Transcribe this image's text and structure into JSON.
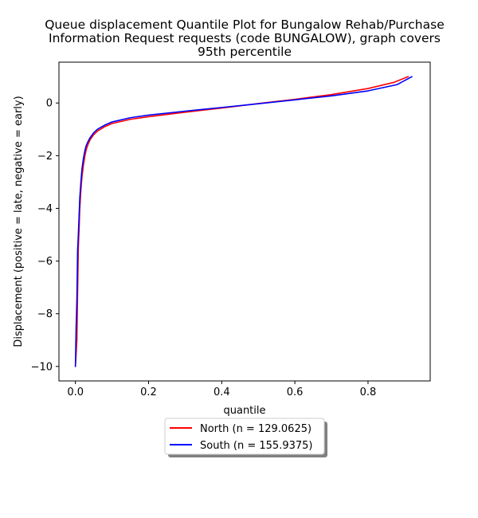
{
  "chart_data": {
    "type": "line",
    "title_lines": [
      "Queue displacement Quantile Plot for Bungalow Rehab/Purchase",
      "Information Request  requests (code BUNGALOW), graph covers",
      "95th percentile"
    ],
    "xlabel": "quantile",
    "ylabel": "Displacement (positive = late, negative = early)",
    "xlim": [
      -0.045,
      0.97
    ],
    "ylim": [
      -10.55,
      1.55
    ],
    "xticks": [
      0.0,
      0.2,
      0.4,
      0.6,
      0.8
    ],
    "xtick_labels": [
      "0.0",
      "0.2",
      "0.4",
      "0.6",
      "0.8"
    ],
    "yticks": [
      0,
      -2,
      -4,
      -6,
      -8,
      -10
    ],
    "ytick_labels": [
      "0",
      "−2",
      "−4",
      "−6",
      "−8",
      "−10"
    ],
    "grid": false,
    "legend_position": "below",
    "series": [
      {
        "name": "North (n = 129.0625)",
        "color": "#ff0000",
        "x": [
          0.0,
          0.004,
          0.006,
          0.008,
          0.01,
          0.012,
          0.015,
          0.018,
          0.022,
          0.026,
          0.03,
          0.035,
          0.04,
          0.05,
          0.06,
          0.08,
          0.1,
          0.15,
          0.2,
          0.3,
          0.4,
          0.5,
          0.6,
          0.7,
          0.8,
          0.87,
          0.91
        ],
        "values": [
          -10.0,
          -9.0,
          -7.2,
          -5.5,
          -4.8,
          -4.0,
          -3.3,
          -2.8,
          -2.35,
          -2.0,
          -1.75,
          -1.55,
          -1.4,
          -1.2,
          -1.07,
          -0.9,
          -0.78,
          -0.62,
          -0.52,
          -0.35,
          -0.19,
          -0.02,
          0.14,
          0.32,
          0.55,
          0.78,
          1.0
        ]
      },
      {
        "name": "South (n = 155.9375)",
        "color": "#0000ff",
        "x": [
          0.0,
          0.002,
          0.004,
          0.006,
          0.008,
          0.01,
          0.012,
          0.015,
          0.018,
          0.022,
          0.026,
          0.03,
          0.035,
          0.04,
          0.05,
          0.06,
          0.08,
          0.1,
          0.15,
          0.2,
          0.3,
          0.4,
          0.5,
          0.6,
          0.7,
          0.8,
          0.88,
          0.92
        ],
        "values": [
          -10.0,
          -8.5,
          -7.5,
          -5.6,
          -5.0,
          -4.3,
          -3.6,
          -3.0,
          -2.5,
          -2.1,
          -1.8,
          -1.6,
          -1.45,
          -1.32,
          -1.13,
          -1.0,
          -0.84,
          -0.72,
          -0.56,
          -0.46,
          -0.31,
          -0.17,
          -0.03,
          0.12,
          0.27,
          0.46,
          0.7,
          1.0
        ]
      }
    ]
  }
}
